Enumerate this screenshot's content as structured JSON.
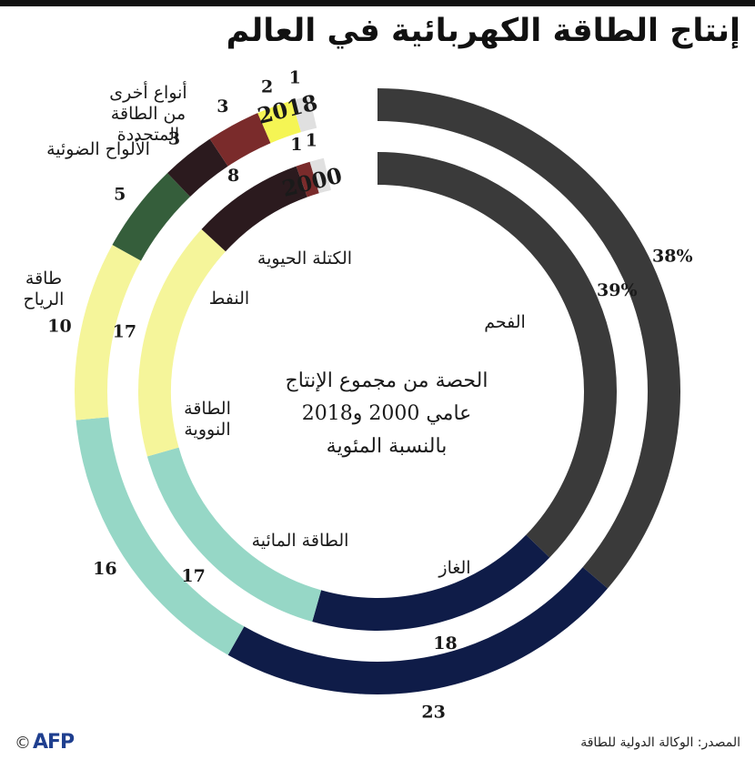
{
  "title": "إنتاج الطاقة الكهربائية في العالم",
  "source": "المصدر: الوكالة الدولية للطاقة",
  "copyright": "©",
  "logo": "AFP",
  "center_label": [
    "الحصة من مجموع الإنتاج",
    "عامي 2000 و2018",
    "بالنسبة المئوية"
  ],
  "chart_data": {
    "type": "pie",
    "unit": "%",
    "categories": [
      "الفحم",
      "الغاز",
      "الطاقة المائية",
      "الطاقة النووية",
      "طاقة الرياح",
      "النفط",
      "الكتلة الحيوية",
      "الألواح الضوئية",
      "أنواع أخرى من الطاقة المتجددة"
    ],
    "colors": [
      "#3a3a3a",
      "#0f1c48",
      "#96d7c6",
      "#f5f59a",
      "#355e3b",
      "#2b1a1e",
      "#7a2b2b",
      "#f5f554",
      "#e0e0e0"
    ],
    "series": [
      {
        "name": "2018",
        "values": [
          38,
          23,
          16,
          10,
          5,
          3,
          3,
          2,
          1
        ],
        "value_labels": [
          "38%",
          "23",
          "16",
          "10",
          "5",
          "3",
          "3",
          "2",
          "1"
        ]
      },
      {
        "name": "2000",
        "values": [
          39,
          18,
          17,
          17,
          0,
          8,
          1,
          0,
          1
        ],
        "value_labels": [
          "39%",
          "18",
          "17",
          "17",
          "",
          "8",
          "1",
          "",
          "1"
        ]
      }
    ],
    "category_labels": [
      {
        "series": 1,
        "lines": [
          "الفحم"
        ]
      },
      {
        "series": 1,
        "lines": [
          "الغاز"
        ]
      },
      {
        "series": 1,
        "lines": [
          "الطاقة المائية"
        ]
      },
      {
        "series": 1,
        "lines": [
          "الطاقة",
          "النووية"
        ]
      },
      {
        "series": 0,
        "lines": [
          "طاقة",
          "الرياح"
        ]
      },
      {
        "series": 1,
        "lines": [
          "النفط"
        ]
      },
      {
        "series": 1,
        "lines": [
          "الكتلة الحيوية"
        ]
      },
      {
        "series": 0,
        "lines": [
          "الألواح الضوئية"
        ]
      },
      {
        "series": 0,
        "lines": [
          "أنواع أخرى",
          "من الطاقة",
          "المتجددة"
        ]
      }
    ]
  }
}
